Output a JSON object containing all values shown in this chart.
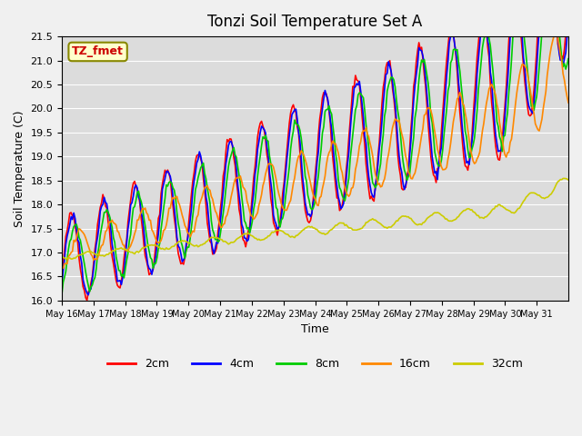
{
  "title": "Tonzi Soil Temperature Set A",
  "xlabel": "Time",
  "ylabel": "Soil Temperature (C)",
  "annotation": "TZ_fmet",
  "ylim": [
    16.0,
    21.5
  ],
  "series_labels": [
    "2cm",
    "4cm",
    "8cm",
    "16cm",
    "32cm"
  ],
  "series_colors": [
    "#ff0000",
    "#0000ff",
    "#00cc00",
    "#ff8800",
    "#cccc00"
  ],
  "xtick_labels": [
    "May 16",
    "May 17",
    "May 18",
    "May 19",
    "May 20",
    "May 21",
    "May 22",
    "May 23",
    "May 24",
    "May 25",
    "May 26",
    "May 27",
    "May 28",
    "May 29",
    "May 30",
    "May 31"
  ],
  "n_days": 16,
  "pts_per_day": 24
}
